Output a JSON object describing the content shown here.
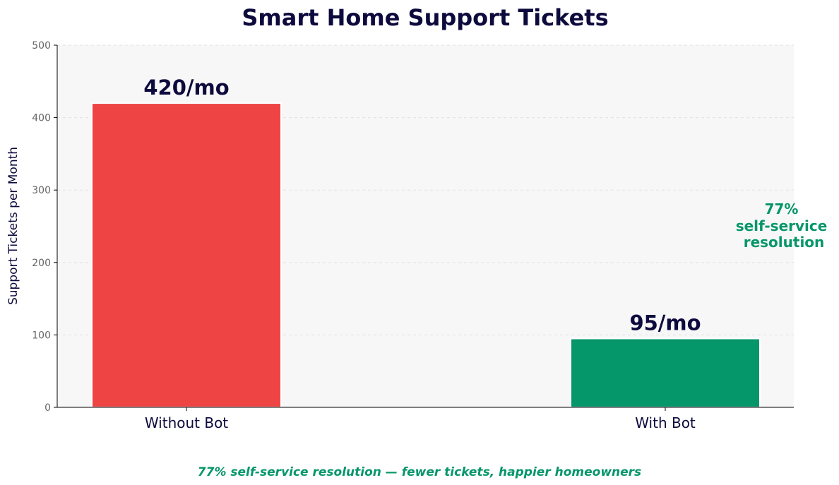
{
  "chart_data": {
    "type": "bar",
    "title": "Smart Home Support Tickets",
    "ylabel": "Support Tickets per Month",
    "xlabel": "",
    "categories": [
      "Without Bot",
      "With Bot"
    ],
    "values": [
      420,
      95
    ],
    "value_labels": [
      "420/mo",
      "95/mo"
    ],
    "bar_colors": [
      "#ef4444",
      "#059669"
    ],
    "ylim": [
      0,
      500
    ],
    "yticks": [
      0,
      100,
      200,
      300,
      400,
      500
    ],
    "grid": true,
    "background": "#f7f7f7",
    "annotation": [
      "77%",
      "self-service",
      "resolution"
    ],
    "annotation_color": "#059669",
    "caption": "77% self-service resolution — fewer tickets, happier homeowners"
  }
}
